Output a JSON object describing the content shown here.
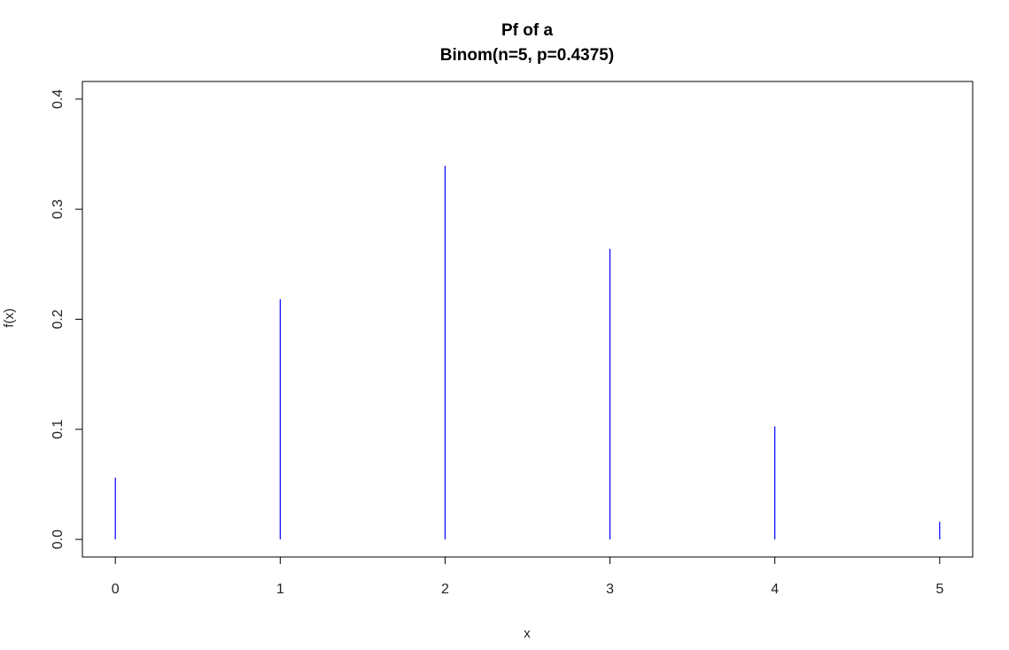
{
  "chart_data": {
    "type": "bar",
    "style": "spike",
    "title": [
      "Pf of a",
      "Binom(n=5, p=0.4375)"
    ],
    "xlabel": "x",
    "ylabel": "f(x)",
    "x": [
      0,
      1,
      2,
      3,
      4,
      5
    ],
    "series": [
      {
        "values": [
          0.0561,
          0.2182,
          0.3394,
          0.264,
          0.1027,
          0.016
        ]
      }
    ],
    "xlim": [
      -0.2,
      5.2
    ],
    "ylim": [
      -0.016,
      0.416
    ],
    "xticks": [
      "0",
      "1",
      "2",
      "3",
      "4",
      "5"
    ],
    "yticks": [
      "0.0",
      "0.1",
      "0.2",
      "0.3",
      "0.4"
    ],
    "grid": false,
    "legend": "none",
    "colors": {
      "spike": "#0000ff",
      "axes": "#000000",
      "text": "#222222"
    }
  }
}
